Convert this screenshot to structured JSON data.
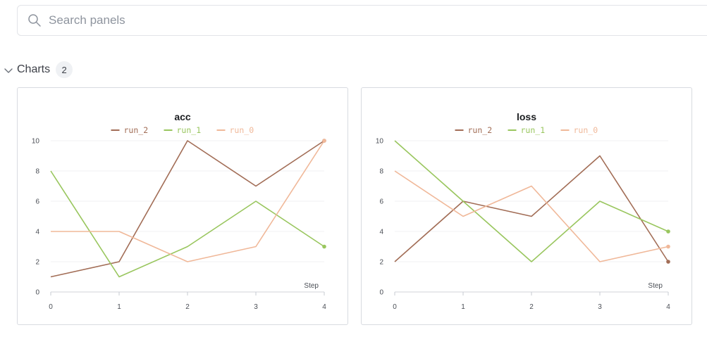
{
  "search": {
    "placeholder": "Search panels",
    "value": ""
  },
  "section": {
    "title": "Charts",
    "count": "2"
  },
  "colors": {
    "run_2": "#a26d56",
    "run_1": "#99c65e",
    "run_0": "#f0b899"
  },
  "chart_data": [
    {
      "type": "line",
      "title": "acc",
      "xlabel": "Step",
      "ylabel": "",
      "x": [
        0,
        1,
        2,
        3,
        4
      ],
      "xlim": [
        0,
        4
      ],
      "ylim": [
        0,
        10
      ],
      "yticks": [
        0,
        2,
        4,
        6,
        8,
        10
      ],
      "xticks": [
        0,
        1,
        2,
        3,
        4
      ],
      "legend": "top-center",
      "series": [
        {
          "name": "run_2",
          "color": "#a26d56",
          "values": [
            1,
            2,
            10,
            7,
            10
          ]
        },
        {
          "name": "run_1",
          "color": "#99c65e",
          "values": [
            8,
            1,
            3,
            6,
            3
          ]
        },
        {
          "name": "run_0",
          "color": "#f0b899",
          "values": [
            4,
            4,
            2,
            3,
            10
          ]
        }
      ]
    },
    {
      "type": "line",
      "title": "loss",
      "xlabel": "Step",
      "ylabel": "",
      "x": [
        0,
        1,
        2,
        3,
        4
      ],
      "xlim": [
        0,
        4
      ],
      "ylim": [
        0,
        10
      ],
      "yticks": [
        0,
        2,
        4,
        6,
        8,
        10
      ],
      "xticks": [
        0,
        1,
        2,
        3,
        4
      ],
      "legend": "top-center",
      "series": [
        {
          "name": "run_2",
          "color": "#a26d56",
          "values": [
            2,
            6,
            5,
            9,
            2
          ]
        },
        {
          "name": "run_1",
          "color": "#99c65e",
          "values": [
            10,
            6,
            2,
            6,
            4
          ]
        },
        {
          "name": "run_0",
          "color": "#f0b899",
          "values": [
            8,
            5,
            7,
            2,
            3
          ]
        }
      ]
    }
  ]
}
